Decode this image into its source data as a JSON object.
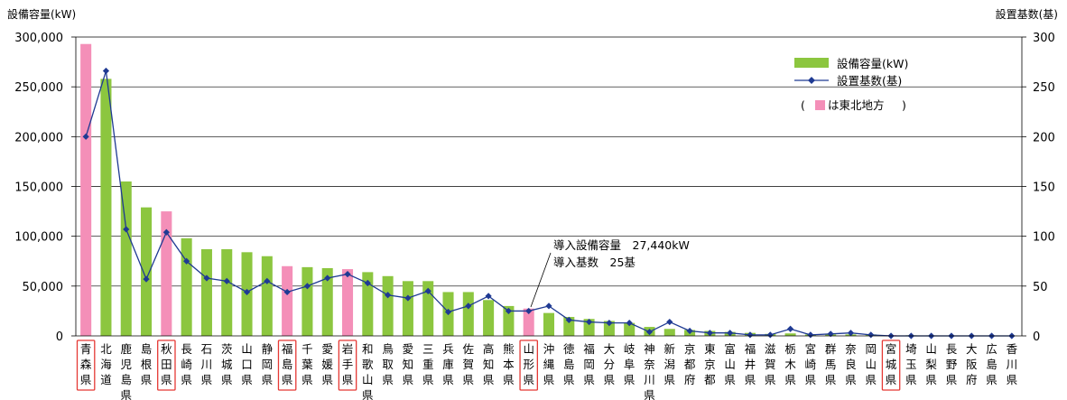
{
  "chart_data": {
    "type": "bar",
    "ylabel_left": "設備容量(kW)",
    "ylabel_right": "設置基数(基)",
    "ylim_left": [
      0,
      300000
    ],
    "ylim_right": [
      0,
      300
    ],
    "yticks_left": [
      "0",
      "50,000",
      "100,000",
      "150,000",
      "200,000",
      "250,000",
      "300,000"
    ],
    "yticks_right": [
      "0",
      "50",
      "100",
      "150",
      "200",
      "250",
      "300"
    ],
    "grid": true,
    "legend_position": "top-right",
    "categories": [
      "青森県",
      "北海道",
      "鹿児島県",
      "島根県",
      "秋田県",
      "長崎県",
      "石川県",
      "茨城県",
      "山口県",
      "静岡県",
      "福島県",
      "千葉県",
      "愛媛県",
      "岩手県",
      "和歌山県",
      "鳥取県",
      "愛知県",
      "三重県",
      "兵庫県",
      "佐賀県",
      "高知県",
      "熊本県",
      "山形県",
      "沖縄県",
      "徳島県",
      "福岡県",
      "大分県",
      "岐阜県",
      "神奈川県",
      "新潟県",
      "京都府",
      "東京都",
      "富山県",
      "福井県",
      "滋賀県",
      "栃木県",
      "宮崎県",
      "群馬県",
      "奈良県",
      "岡山県",
      "宮城県",
      "埼玉県",
      "山梨県",
      "長野県",
      "大阪府",
      "広島県",
      "香川県"
    ],
    "tohoku": [
      "青森県",
      "秋田県",
      "福島県",
      "岩手県",
      "山形県",
      "宮城県"
    ],
    "series": [
      {
        "name": "設備容量(kW)",
        "kind": "bar",
        "axis": "left",
        "color": "#8cc63f",
        "highlight_color": "#f48fb8",
        "values": [
          293000,
          258000,
          155000,
          129000,
          125000,
          98000,
          87000,
          87000,
          84000,
          80000,
          70000,
          69000,
          68000,
          67000,
          64000,
          60000,
          55000,
          55000,
          44000,
          44000,
          36000,
          30000,
          27440,
          23000,
          19000,
          17000,
          15000,
          13000,
          9000,
          7000,
          6000,
          5000,
          4000,
          3000,
          2000,
          2500,
          1500,
          1500,
          1500,
          1500,
          800,
          600,
          500,
          400,
          300,
          300,
          200
        ]
      },
      {
        "name": "設置基数(基)",
        "kind": "line",
        "axis": "right",
        "color": "#1f3a93",
        "values": [
          200,
          266,
          107,
          57,
          104,
          75,
          58,
          55,
          44,
          55,
          44,
          50,
          58,
          62,
          53,
          41,
          38,
          45,
          24,
          30,
          40,
          25,
          25,
          30,
          16,
          14,
          13,
          13,
          4,
          14,
          5,
          3,
          3,
          1,
          1,
          7,
          1,
          2,
          3,
          1,
          0,
          0,
          0,
          0,
          0,
          0,
          0
        ]
      }
    ],
    "legend": [
      {
        "label": "設備容量(kW)"
      },
      {
        "label": "設置基数(基)"
      },
      {
        "label": "は東北地方",
        "prefix": "(",
        "suffix": ")"
      }
    ],
    "annotation": {
      "category": "山形県",
      "lines": [
        "導入設備容量　27,440kW",
        "導入基数　25基"
      ]
    }
  }
}
